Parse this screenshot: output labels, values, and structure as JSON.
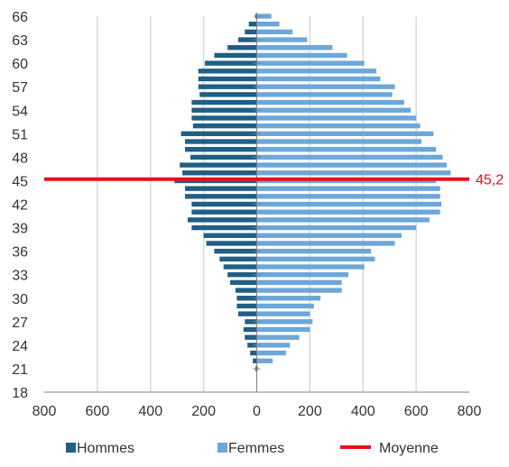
{
  "chart_data": {
    "type": "bar",
    "orientation": "horizontal",
    "ages": [
      18,
      19,
      20,
      21,
      22,
      23,
      24,
      25,
      26,
      27,
      28,
      29,
      30,
      31,
      32,
      33,
      34,
      35,
      36,
      37,
      38,
      39,
      40,
      41,
      42,
      43,
      44,
      45,
      46,
      47,
      48,
      49,
      50,
      51,
      52,
      53,
      54,
      55,
      56,
      57,
      58,
      59,
      60,
      61,
      62,
      63,
      64,
      65,
      66
    ],
    "series": [
      {
        "name": "Hommes",
        "color": "#1f5f86",
        "values": [
          0,
          0,
          0,
          5,
          15,
          25,
          35,
          45,
          50,
          45,
          70,
          75,
          75,
          80,
          100,
          110,
          125,
          140,
          160,
          190,
          200,
          245,
          260,
          245,
          245,
          270,
          270,
          310,
          280,
          290,
          250,
          270,
          270,
          285,
          240,
          245,
          245,
          245,
          215,
          220,
          220,
          220,
          195,
          160,
          110,
          70,
          45,
          30,
          5
        ]
      },
      {
        "name": "Femmes",
        "color": "#6da7d9",
        "values": [
          0,
          0,
          0,
          5,
          60,
          110,
          125,
          160,
          200,
          210,
          200,
          215,
          240,
          320,
          320,
          345,
          405,
          445,
          430,
          520,
          545,
          600,
          650,
          690,
          695,
          690,
          690,
          675,
          730,
          715,
          700,
          675,
          620,
          665,
          615,
          600,
          580,
          555,
          510,
          520,
          465,
          450,
          405,
          340,
          285,
          190,
          135,
          85,
          55
        ]
      }
    ],
    "mean": {
      "name": "Moyenne",
      "value": 45.2,
      "label": "45,2",
      "color": "#e8101b"
    },
    "x_ticks": [
      "800",
      "600",
      "400",
      "200",
      "0",
      "200",
      "400",
      "600",
      "800"
    ],
    "xlim": [
      -800,
      800
    ],
    "y_ticks": [
      "18",
      "21",
      "24",
      "27",
      "30",
      "33",
      "36",
      "39",
      "42",
      "45",
      "48",
      "51",
      "54",
      "57",
      "60",
      "63",
      "66"
    ],
    "ylim": [
      18,
      66
    ],
    "grid": "vertical",
    "legend_position": "bottom",
    "legend": [
      {
        "label": "Hommes",
        "color": "#1f5f86"
      },
      {
        "label": "Femmes",
        "color": "#6da7d9"
      },
      {
        "label": "Moyenne",
        "color": "#e8101b"
      }
    ]
  }
}
